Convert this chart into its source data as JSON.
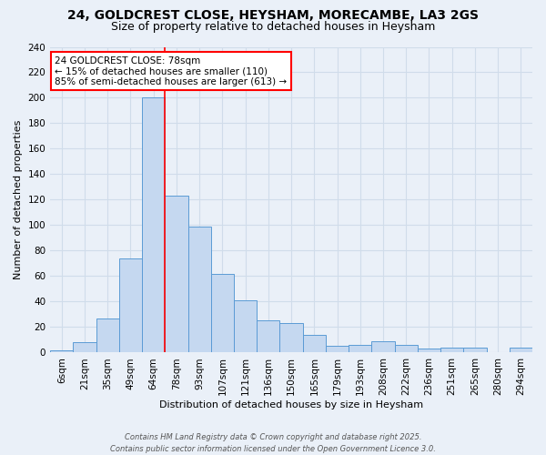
{
  "title1": "24, GOLDCREST CLOSE, HEYSHAM, MORECAMBE, LA3 2GS",
  "title2": "Size of property relative to detached houses in Heysham",
  "xlabel": "Distribution of detached houses by size in Heysham",
  "ylabel": "Number of detached properties",
  "categories": [
    "6sqm",
    "21sqm",
    "35sqm",
    "49sqm",
    "64sqm",
    "78sqm",
    "93sqm",
    "107sqm",
    "121sqm",
    "136sqm",
    "150sqm",
    "165sqm",
    "179sqm",
    "193sqm",
    "208sqm",
    "222sqm",
    "236sqm",
    "251sqm",
    "265sqm",
    "280sqm",
    "294sqm"
  ],
  "values": [
    2,
    8,
    27,
    74,
    200,
    123,
    99,
    62,
    41,
    25,
    23,
    14,
    5,
    6,
    9,
    6,
    3,
    4,
    4,
    0,
    4
  ],
  "bar_color": "#c5d8f0",
  "bar_edge_color": "#5b9bd5",
  "vline_color": "red",
  "vline_x": 4.5,
  "annotation_text": "24 GOLDCREST CLOSE: 78sqm\n← 15% of detached houses are smaller (110)\n85% of semi-detached houses are larger (613) →",
  "annotation_box_color": "white",
  "annotation_box_edge_color": "red",
  "ylim": [
    0,
    240
  ],
  "yticks": [
    0,
    20,
    40,
    60,
    80,
    100,
    120,
    140,
    160,
    180,
    200,
    220,
    240
  ],
  "background_color": "#eaf0f8",
  "grid_color": "#d0dcea",
  "footer_line1": "Contains HM Land Registry data © Crown copyright and database right 2025.",
  "footer_line2": "Contains public sector information licensed under the Open Government Licence 3.0.",
  "title_fontsize": 10,
  "subtitle_fontsize": 9,
  "annot_fontsize": 7.5,
  "ylabel_fontsize": 8,
  "xlabel_fontsize": 8,
  "tick_fontsize": 7.5,
  "footer_fontsize": 6
}
